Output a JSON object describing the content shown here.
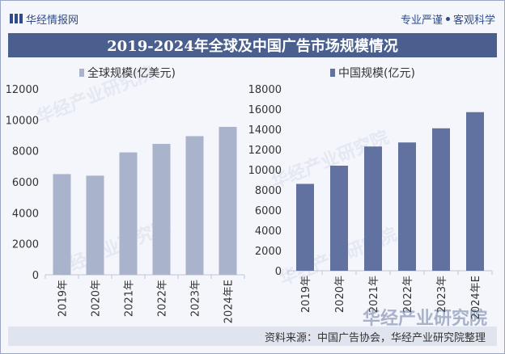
{
  "header": {
    "brand": "华经情报网",
    "tagline_1": "专业严谨",
    "tagline_2": "客观科学"
  },
  "title": "2019-2024年全球及中国广告市场规模情况",
  "source": "资料来源：中国广告协会，华经产业研究院整理",
  "watermark": "华经产业研究院",
  "colors": {
    "global_bar": "#a9b3cc",
    "china_bar": "#6272a0",
    "title_bg": "#4a5f8e"
  },
  "chart_data": [
    {
      "type": "bar",
      "categories": [
        "2019年",
        "2020年",
        "2021年",
        "2022年",
        "2023年",
        "2024年E"
      ],
      "series": [
        {
          "name": "全球规模(亿美元)",
          "values": [
            6500,
            6400,
            7900,
            8450,
            8950,
            9550
          ]
        }
      ],
      "ylim": [
        0,
        12000
      ],
      "yticks": [
        0,
        2000,
        4000,
        6000,
        8000,
        10000,
        12000
      ],
      "grid": false,
      "legend": "top-left"
    },
    {
      "type": "bar",
      "categories": [
        "2019年",
        "2020年",
        "2021年",
        "2022年",
        "2023年",
        "2024年E"
      ],
      "series": [
        {
          "name": "中国规模(亿元)",
          "values": [
            8600,
            10400,
            12300,
            12700,
            14100,
            15700
          ]
        }
      ],
      "ylim": [
        0,
        18000
      ],
      "yticks": [
        0,
        2000,
        4000,
        6000,
        8000,
        10000,
        12000,
        14000,
        16000,
        18000
      ],
      "grid": false,
      "legend": "top-left"
    }
  ]
}
